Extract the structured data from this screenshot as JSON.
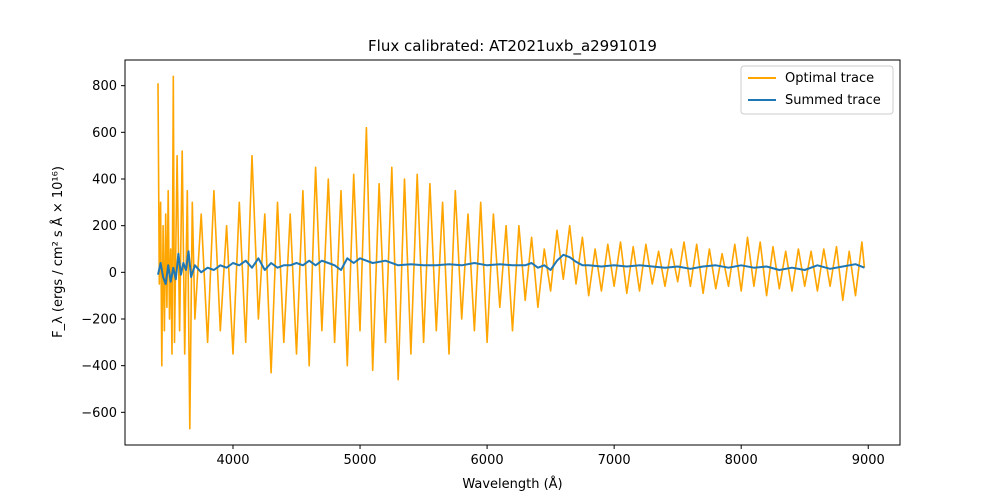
{
  "chart_data": {
    "type": "line",
    "title": "Flux calibrated: AT2021uxb_a2991019",
    "xlabel": "Wavelength (Å)",
    "ylabel": "F_λ (ergs / cm² s Å × 10¹⁶)",
    "xlim": [
      3150,
      9250
    ],
    "ylim": [
      -740,
      910
    ],
    "xticks": [
      4000,
      5000,
      6000,
      7000,
      8000,
      9000
    ],
    "yticks": [
      -600,
      -400,
      -200,
      0,
      200,
      400,
      600,
      800
    ],
    "grid": false,
    "legend_position": "top-right",
    "series": [
      {
        "name": "Optimal trace",
        "color": "#ffa500",
        "x": [
          3410,
          3420,
          3430,
          3440,
          3450,
          3460,
          3470,
          3480,
          3490,
          3500,
          3510,
          3520,
          3530,
          3540,
          3560,
          3580,
          3600,
          3620,
          3640,
          3660,
          3680,
          3700,
          3750,
          3800,
          3850,
          3900,
          3950,
          4000,
          4050,
          4100,
          4150,
          4200,
          4250,
          4300,
          4350,
          4400,
          4450,
          4500,
          4550,
          4600,
          4650,
          4700,
          4750,
          4800,
          4850,
          4900,
          4950,
          5000,
          5050,
          5100,
          5150,
          5200,
          5250,
          5300,
          5350,
          5400,
          5450,
          5500,
          5550,
          5600,
          5650,
          5700,
          5750,
          5800,
          5850,
          5900,
          5950,
          6000,
          6050,
          6100,
          6150,
          6200,
          6250,
          6300,
          6350,
          6400,
          6450,
          6500,
          6550,
          6600,
          6650,
          6700,
          6750,
          6800,
          6850,
          6900,
          6950,
          7000,
          7050,
          7100,
          7150,
          7200,
          7250,
          7300,
          7350,
          7400,
          7450,
          7500,
          7550,
          7600,
          7650,
          7700,
          7750,
          7800,
          7850,
          7900,
          7950,
          8000,
          8050,
          8100,
          8150,
          8200,
          8250,
          8300,
          8350,
          8400,
          8450,
          8500,
          8550,
          8600,
          8650,
          8700,
          8750,
          8800,
          8850,
          8900,
          8950,
          8970
        ],
        "y": [
          810,
          -50,
          300,
          -400,
          200,
          -250,
          250,
          -150,
          350,
          -200,
          100,
          -350,
          840,
          -300,
          500,
          -250,
          520,
          -350,
          350,
          -670,
          300,
          -200,
          250,
          -300,
          350,
          -250,
          200,
          -350,
          300,
          -300,
          500,
          -200,
          250,
          -430,
          300,
          -300,
          250,
          -350,
          350,
          -400,
          450,
          -250,
          400,
          -300,
          350,
          -400,
          420,
          -250,
          620,
          -420,
          380,
          -300,
          450,
          -460,
          400,
          -350,
          420,
          -300,
          380,
          -250,
          300,
          -350,
          350,
          -200,
          250,
          -250,
          300,
          -300,
          250,
          -150,
          200,
          -250,
          200,
          -120,
          150,
          -150,
          100,
          -80,
          180,
          -30,
          200,
          -50,
          150,
          -100,
          100,
          -80,
          120,
          -60,
          130,
          -90,
          110,
          -80,
          120,
          -50,
          90,
          -60,
          100,
          -40,
          130,
          -60,
          120,
          -90,
          100,
          -70,
          80,
          -60,
          120,
          -80,
          150,
          -60,
          130,
          -100,
          110,
          -70,
          90,
          -80,
          100,
          -60,
          90,
          -80,
          100,
          -60,
          110,
          -120,
          90,
          -100,
          130,
          20
        ]
      },
      {
        "name": "Summed trace",
        "color": "#1f77b4",
        "x": [
          3410,
          3430,
          3450,
          3470,
          3490,
          3510,
          3530,
          3550,
          3570,
          3590,
          3610,
          3630,
          3650,
          3670,
          3700,
          3750,
          3800,
          3850,
          3900,
          3950,
          4000,
          4050,
          4100,
          4150,
          4200,
          4250,
          4300,
          4350,
          4400,
          4450,
          4500,
          4550,
          4600,
          4650,
          4700,
          4750,
          4800,
          4850,
          4900,
          4950,
          5000,
          5100,
          5200,
          5300,
          5400,
          5500,
          5600,
          5700,
          5800,
          5900,
          6000,
          6100,
          6200,
          6300,
          6350,
          6400,
          6450,
          6500,
          6550,
          6600,
          6650,
          6700,
          6750,
          6800,
          6900,
          7000,
          7100,
          7200,
          7300,
          7400,
          7500,
          7600,
          7700,
          7800,
          7900,
          8000,
          8100,
          8200,
          8300,
          8400,
          8500,
          8600,
          8700,
          8800,
          8900,
          8970
        ],
        "y": [
          -10,
          40,
          -20,
          -50,
          30,
          -40,
          20,
          -30,
          80,
          -10,
          40,
          10,
          90,
          -20,
          30,
          0,
          20,
          10,
          30,
          20,
          40,
          30,
          50,
          20,
          60,
          10,
          40,
          20,
          30,
          30,
          40,
          30,
          50,
          30,
          50,
          40,
          30,
          10,
          60,
          40,
          60,
          40,
          50,
          30,
          35,
          30,
          30,
          35,
          30,
          40,
          30,
          35,
          30,
          30,
          40,
          20,
          30,
          10,
          50,
          75,
          65,
          45,
          30,
          30,
          25,
          30,
          25,
          30,
          25,
          20,
          25,
          15,
          25,
          30,
          20,
          30,
          20,
          25,
          10,
          20,
          10,
          30,
          15,
          25,
          35,
          20
        ]
      }
    ]
  }
}
